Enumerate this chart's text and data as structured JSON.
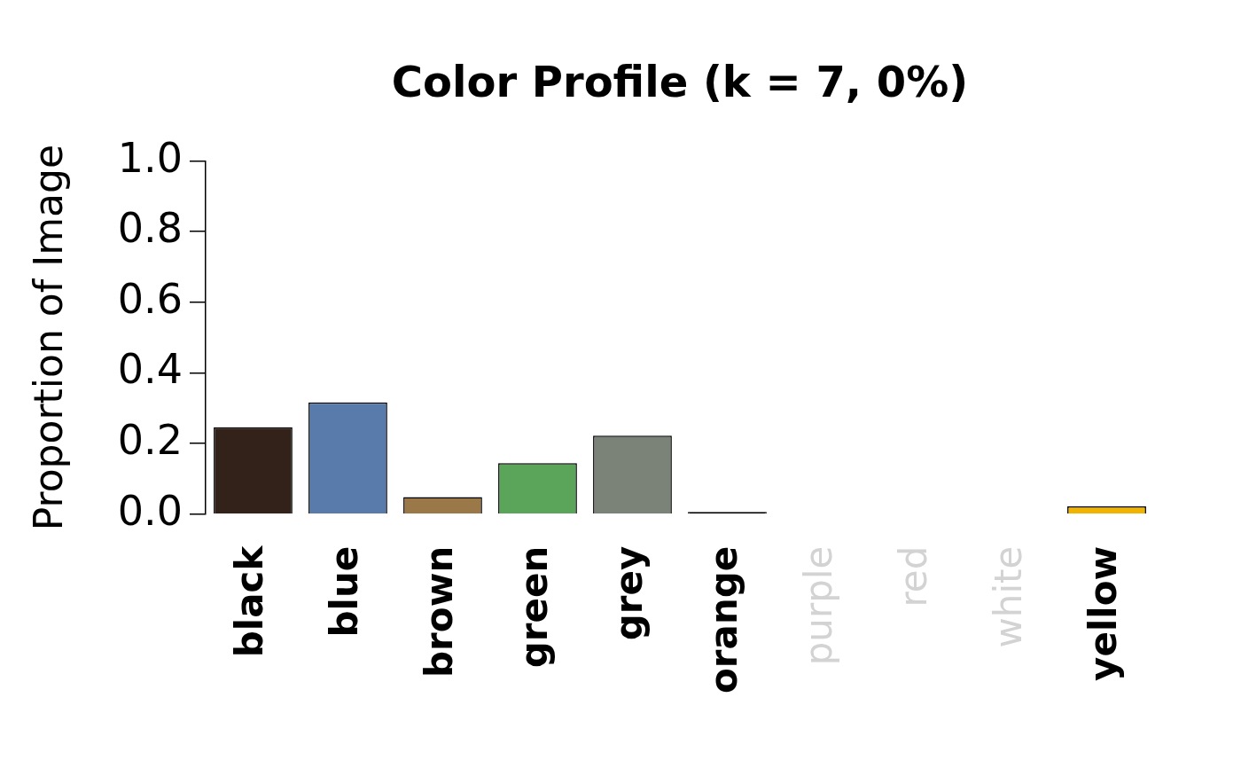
{
  "chart_data": {
    "type": "bar",
    "title": "Color Profile (k = 7, 0%)",
    "ylabel": "Proportion of Image",
    "categories": [
      "black",
      "blue",
      "brown",
      "green",
      "grey",
      "orange",
      "purple",
      "red",
      "white",
      "yellow"
    ],
    "values": [
      0.246,
      0.316,
      0.048,
      0.144,
      0.222,
      0.006,
      0,
      0,
      0,
      0.022
    ],
    "colors": [
      "#332219",
      "#587bab",
      "#9b7848",
      "#5ba55a",
      "#7b8278",
      "#000000",
      null,
      null,
      null,
      "#f0b400"
    ],
    "ylim": [
      0,
      1
    ],
    "yticks": [
      {
        "value": 0,
        "label": "0.0"
      },
      {
        "value": 0.2,
        "label": "0.2"
      },
      {
        "value": 0.4,
        "label": "0.4"
      },
      {
        "value": 0.6,
        "label": "0.6"
      },
      {
        "value": 0.8,
        "label": "0.8"
      },
      {
        "value": 1,
        "label": "1.0"
      }
    ],
    "grid": false,
    "legend": false
  }
}
